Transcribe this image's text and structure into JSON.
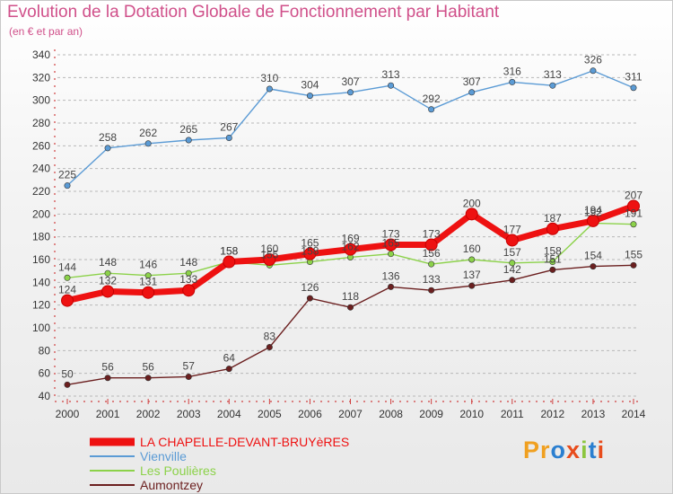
{
  "title": "Evolution de la Dotation Globale de Fonctionnement par Habitant",
  "subtitle": "(en € et par an)",
  "logo": {
    "text": "Proxiti",
    "colors": [
      "#f0a020",
      "#f0a020",
      "#2b7fd0",
      "#e84c1c",
      "#8cc63f",
      "#2b7fd0",
      "#e84c1c"
    ]
  },
  "chart_data": {
    "type": "line",
    "title": "Evolution de la Dotation Globale de Fonctionnement par Habitant",
    "ylabel": "(en € et par an)",
    "x": [
      "2000",
      "2001",
      "2002",
      "2003",
      "2004",
      "2005",
      "2006",
      "2007",
      "2008",
      "2009",
      "2010",
      "2011",
      "2012",
      "2013",
      "2014"
    ],
    "ylim": [
      40,
      340
    ],
    "yticks": [
      40,
      60,
      80,
      100,
      120,
      140,
      160,
      180,
      200,
      220,
      240,
      260,
      280,
      300,
      320,
      340
    ],
    "grid": "dashed-horizontal",
    "legend_position": "bottom-left",
    "series": [
      {
        "name": "Vienville",
        "color": "#5b9bd5",
        "values": [
          225,
          258,
          262,
          265,
          267,
          310,
          304,
          307,
          313,
          292,
          307,
          316,
          313,
          326,
          311
        ]
      },
      {
        "name": "Les Poulières",
        "color": "#8cd24a",
        "values": [
          144,
          148,
          146,
          148,
          158,
          155,
          158,
          162,
          165,
          156,
          160,
          157,
          158,
          192,
          191
        ]
      },
      {
        "name": "Aumontzey",
        "color": "#6b1f1f",
        "values": [
          50,
          56,
          56,
          57,
          64,
          83,
          126,
          118,
          136,
          133,
          137,
          142,
          151,
          154,
          155
        ]
      },
      {
        "name": "LA CHAPELLE-DEVANT-BRUYèRES",
        "color": "#ee1111",
        "values": [
          124,
          132,
          131,
          133,
          158,
          160,
          165,
          169,
          173,
          173,
          200,
          177,
          187,
          194,
          207
        ]
      }
    ],
    "legend_order": [
      "LA CHAPELLE-DEVANT-BRUYèRES",
      "Vienville",
      "Les Poulières",
      "Aumontzey"
    ]
  }
}
